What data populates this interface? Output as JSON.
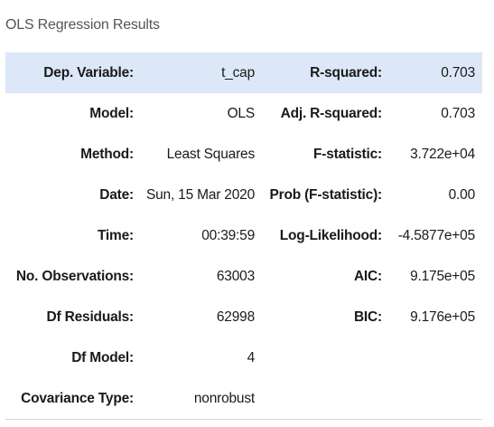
{
  "caption": "OLS Regression Results",
  "rows": [
    {
      "label1": "Dep. Variable:",
      "value1": "t_cap",
      "label2": "R-squared:",
      "value2": "0.703"
    },
    {
      "label1": "Model:",
      "value1": "OLS",
      "label2": "Adj. R-squared:",
      "value2": "0.703"
    },
    {
      "label1": "Method:",
      "value1": "Least Squares",
      "label2": "F-statistic:",
      "value2": "3.722e+04"
    },
    {
      "label1": "Date:",
      "value1": "Sun, 15 Mar 2020",
      "label2": "Prob (F-statistic):",
      "value2": "0.00"
    },
    {
      "label1": "Time:",
      "value1": "00:39:59",
      "label2": "Log-Likelihood:",
      "value2": "-4.5877e+05"
    },
    {
      "label1": "No. Observations:",
      "value1": "63003",
      "label2": "AIC:",
      "value2": "9.175e+05"
    },
    {
      "label1": "Df Residuals:",
      "value1": "62998",
      "label2": "BIC:",
      "value2": "9.176e+05"
    },
    {
      "label1": "Df Model:",
      "value1": "4",
      "label2": "",
      "value2": ""
    },
    {
      "label1": "Covariance Type:",
      "value1": "nonrobust",
      "label2": "",
      "value2": ""
    }
  ]
}
